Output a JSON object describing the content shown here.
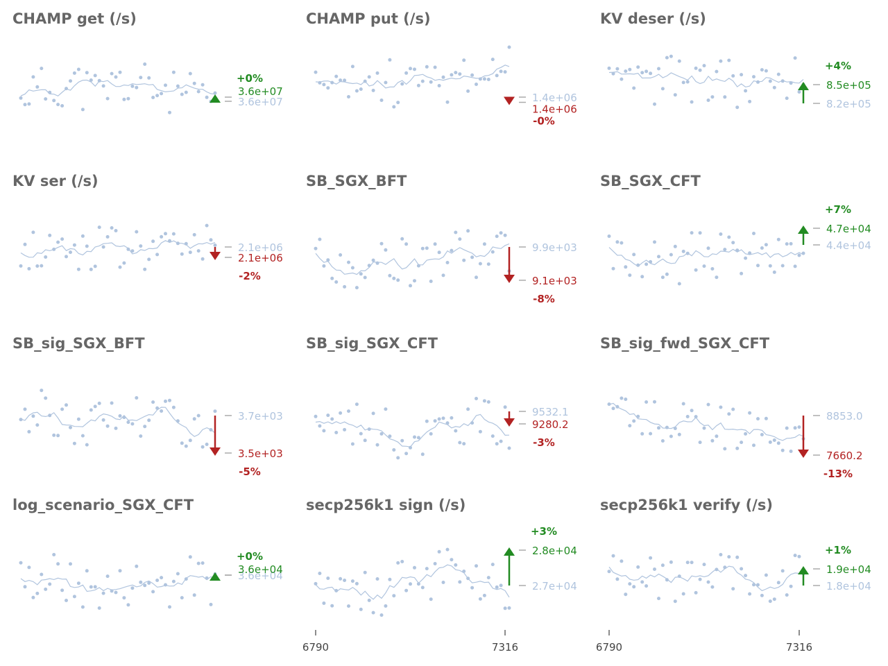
{
  "colors": {
    "up": "#228b22",
    "down": "#b22222",
    "baseline": "#b0c4de",
    "points": "#b0c4de",
    "line": "#b0c4de",
    "title": "#666666",
    "tick": "#aaaaaa"
  },
  "x_axis": {
    "ticks": [
      6790,
      7316
    ]
  },
  "chart_data": [
    {
      "type": "scatter",
      "title": "CHAMP get (/s)",
      "direction": "up",
      "pct": "+0%",
      "baseline_label": "3.6e+07",
      "last_label": "3.6e+07",
      "baseline": 0.46,
      "last": 0.5,
      "ylim": [
        0,
        1
      ],
      "seed": 11
    },
    {
      "type": "scatter",
      "title": "CHAMP put (/s)",
      "direction": "down",
      "pct": "-0%",
      "baseline_label": "1.4e+06",
      "last_label": "1.4e+06",
      "baseline": 0.5,
      "last": 0.45,
      "ylim": [
        0,
        1
      ],
      "seed": 23
    },
    {
      "type": "scatter",
      "title": "KV deser (/s)",
      "direction": "up",
      "pct": "+4%",
      "baseline_label": "8.2e+05",
      "last_label": "8.5e+05",
      "baseline": 0.44,
      "last": 0.62,
      "ylim": [
        0,
        1
      ],
      "seed": 37
    },
    {
      "type": "scatter",
      "title": "KV ser (/s)",
      "direction": "down",
      "pct": "-2%",
      "baseline_label": "2.1e+06",
      "last_label": "2.1e+06",
      "baseline": 0.62,
      "last": 0.52,
      "ylim": [
        0,
        1
      ],
      "seed": 41
    },
    {
      "type": "scatter",
      "title": "SB_SGX_BFT",
      "direction": "down",
      "pct": "-8%",
      "baseline_label": "9.9e+03",
      "last_label": "9.1e+03",
      "baseline": 0.62,
      "last": 0.3,
      "ylim": [
        0,
        1
      ],
      "seed": 53
    },
    {
      "type": "scatter",
      "title": "SB_SGX_CFT",
      "direction": "up",
      "pct": "+7%",
      "baseline_label": "4.4e+04",
      "last_label": "4.7e+04",
      "baseline": 0.64,
      "last": 0.8,
      "ylim": [
        0,
        1
      ],
      "seed": 67
    },
    {
      "type": "scatter",
      "title": "SB_sig_SGX_BFT",
      "direction": "down",
      "pct": "-5%",
      "baseline_label": "3.7e+03",
      "last_label": "3.5e+03",
      "baseline": 0.56,
      "last": 0.2,
      "ylim": [
        0,
        1
      ],
      "seed": 79
    },
    {
      "type": "scatter",
      "title": "SB_sig_SGX_CFT",
      "direction": "down",
      "pct": "-3%",
      "baseline_label": "9532.1",
      "last_label": "9280.2",
      "baseline": 0.6,
      "last": 0.48,
      "ylim": [
        0,
        1
      ],
      "seed": 83
    },
    {
      "type": "scatter",
      "title": "SB_sig_fwd_SGX_CFT",
      "direction": "down",
      "pct": "-13%",
      "baseline_label": "8853.0",
      "last_label": "7660.2",
      "baseline": 0.56,
      "last": 0.18,
      "ylim": [
        0,
        1
      ],
      "seed": 97
    },
    {
      "type": "scatter",
      "title": "log_scenario_SGX_CFT",
      "direction": "up",
      "pct": "+0%",
      "baseline_label": "3.6e+04",
      "last_label": "3.6e+04",
      "baseline": 0.58,
      "last": 0.58,
      "ylim": [
        0,
        1
      ],
      "seed": 101
    },
    {
      "type": "scatter",
      "title": "secp256k1 sign (/s)",
      "direction": "up",
      "pct": "+3%",
      "baseline_label": "2.7e+04",
      "last_label": "2.8e+04",
      "baseline": 0.48,
      "last": 0.82,
      "ylim": [
        0,
        1
      ],
      "seed": 113
    },
    {
      "type": "scatter",
      "title": "secp256k1 verify (/s)",
      "direction": "up",
      "pct": "+1%",
      "baseline_label": "1.8e+04",
      "last_label": "1.9e+04",
      "baseline": 0.48,
      "last": 0.64,
      "ylim": [
        0,
        1
      ],
      "seed": 127
    }
  ]
}
